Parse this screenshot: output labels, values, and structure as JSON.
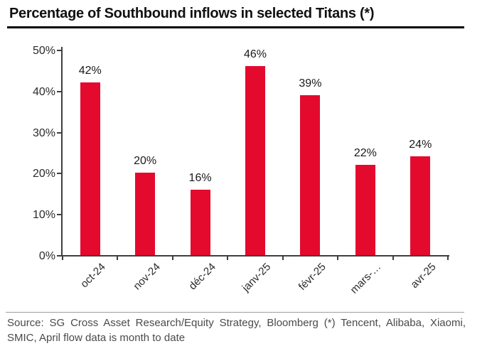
{
  "title": "Percentage of Southbound inflows in selected Titans (*)",
  "source_note": "Source: SG Cross Asset Research/Equity Strategy, Bloomberg (*) Tencent, Alibaba, Xiaomi, SMIC, April flow data is month to date",
  "chart_data": {
    "type": "bar",
    "title": "Percentage of Southbound inflows in selected Titans (*)",
    "categories": [
      "oct-24",
      "nov-24",
      "déc-24",
      "janv-25",
      "févr-25",
      "mars-…",
      "avr-25"
    ],
    "values": [
      42,
      20,
      16,
      46,
      39,
      22,
      24
    ],
    "value_labels": [
      "42%",
      "20%",
      "16%",
      "46%",
      "39%",
      "22%",
      "24%"
    ],
    "xlabel": "",
    "ylabel": "",
    "ylim": [
      0,
      50
    ],
    "ytick_labels": [
      "0%",
      "10%",
      "20%",
      "30%",
      "40%",
      "50%"
    ],
    "ytick_values": [
      0,
      10,
      20,
      30,
      40,
      50
    ],
    "bar_color": "#e40a2e",
    "grid": false,
    "legend": false
  }
}
